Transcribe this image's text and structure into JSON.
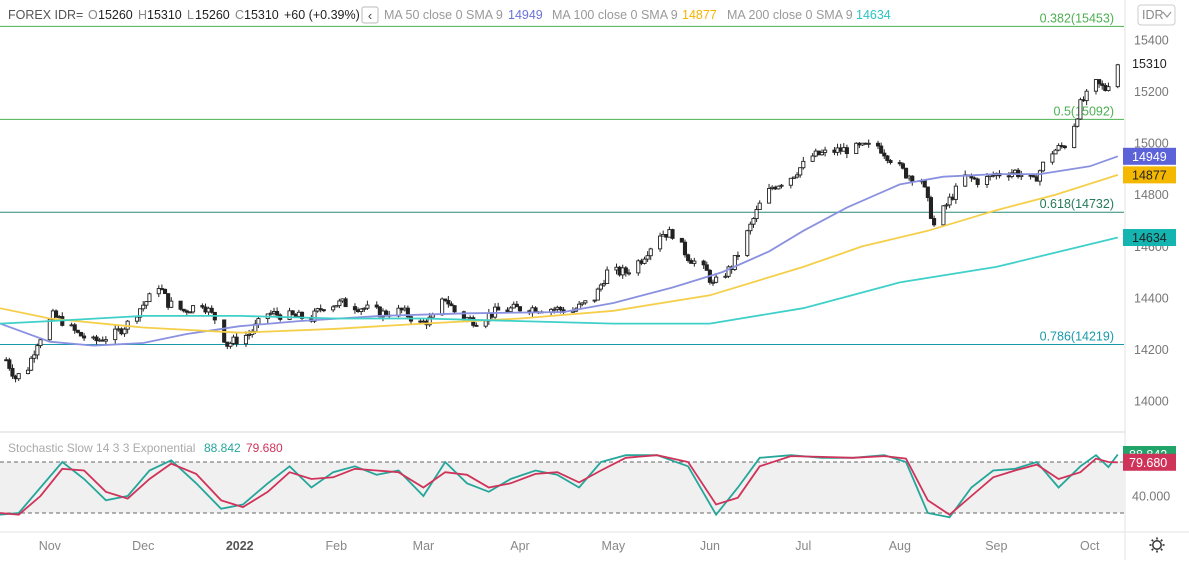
{
  "header": {
    "symbol": "FOREX IDR=",
    "o_label": "O",
    "open": "15260",
    "h_label": "H",
    "high": "15310",
    "l_label": "L",
    "low": "15260",
    "c_label": "C",
    "close": "15310",
    "change": "+60 (+0.39%)",
    "collapse_glyph": "‹",
    "ma": [
      {
        "label": "MA 50 close 0 SMA 9",
        "value": "14949",
        "color": "#6b73d6"
      },
      {
        "label": "MA 100 close 0 SMA 9",
        "value": "14877",
        "color": "#f5b400"
      },
      {
        "label": "MA 200 close 0 SMA 9",
        "value": "14634",
        "color": "#2cc4c4"
      }
    ],
    "currency_button": "IDR",
    "currency_icon": "chevron-down-icon"
  },
  "stoch": {
    "label": "Stochastic Slow 14 3 3 Exponential",
    "k_value": "88.842",
    "d_value": "79.680",
    "k_color": "#26a69a",
    "d_color": "#d0335a",
    "axis_label": "40.000"
  },
  "last_price_label": "15310",
  "settings_icon": "gear-icon",
  "colors": {
    "ma50": "#8a91e0",
    "ma100": "#f5cf4a",
    "ma200": "#3fd0c9",
    "fib_hi": "#4caf50",
    "fib_lo": "#1a9aa8"
  },
  "chart_data": [
    {
      "type": "candlestick",
      "title": "FOREX IDR=",
      "ylim": [
        13900,
        15480
      ],
      "y_ticks": [
        14000,
        14200,
        14400,
        14600,
        14800,
        15000,
        15200,
        15400
      ],
      "x_labels": [
        "Nov",
        "Dec",
        "2022",
        "Feb",
        "Mar",
        "Apr",
        "May",
        "Jun",
        "Jul",
        "Aug",
        "Sep",
        "Oct"
      ],
      "x_start": "2021-10-16",
      "x_end": "2022-10-12",
      "fib_levels": [
        {
          "ratio": "0.382",
          "price": 15453,
          "label": "0.382(15453)"
        },
        {
          "ratio": "0.5",
          "price": 15092,
          "label": "0.5(15092)"
        },
        {
          "ratio": "0.618",
          "price": 14732,
          "label": "0.618(14732)"
        },
        {
          "ratio": "0.786",
          "price": 14219,
          "label": "0.786(14219)"
        }
      ],
      "close_path": [
        [
          "2021-10-18",
          14160
        ],
        [
          "2021-10-21",
          14090
        ],
        [
          "2021-10-25",
          14130
        ],
        [
          "2021-10-28",
          14230
        ],
        [
          "2021-11-02",
          14330
        ],
        [
          "2021-11-05",
          14310
        ],
        [
          "2021-11-10",
          14260
        ],
        [
          "2021-11-15",
          14230
        ],
        [
          "2021-11-22",
          14260
        ],
        [
          "2021-11-26",
          14300
        ],
        [
          "2021-11-30",
          14360
        ],
        [
          "2021-12-03",
          14400
        ],
        [
          "2021-12-06",
          14450
        ],
        [
          "2021-12-09",
          14380
        ],
        [
          "2021-12-14",
          14350
        ],
        [
          "2021-12-20",
          14380
        ],
        [
          "2021-12-24",
          14320
        ],
        [
          "2021-12-28",
          14220
        ],
        [
          "2022-01-04",
          14260
        ],
        [
          "2022-01-10",
          14340
        ],
        [
          "2022-01-17",
          14330
        ],
        [
          "2022-01-24",
          14320
        ],
        [
          "2022-01-28",
          14370
        ],
        [
          "2022-02-03",
          14380
        ],
        [
          "2022-02-10",
          14360
        ],
        [
          "2022-02-16",
          14340
        ],
        [
          "2022-02-22",
          14350
        ],
        [
          "2022-02-28",
          14300
        ],
        [
          "2022-03-04",
          14320
        ],
        [
          "2022-03-08",
          14400
        ],
        [
          "2022-03-12",
          14330
        ],
        [
          "2022-03-18",
          14310
        ],
        [
          "2022-03-25",
          14350
        ],
        [
          "2022-04-01",
          14360
        ],
        [
          "2022-04-10",
          14360
        ],
        [
          "2022-04-18",
          14350
        ],
        [
          "2022-04-25",
          14400
        ],
        [
          "2022-04-29",
          14500
        ],
        [
          "2022-05-05",
          14500
        ],
        [
          "2022-05-10",
          14550
        ],
        [
          "2022-05-16",
          14650
        ],
        [
          "2022-05-20",
          14650
        ],
        [
          "2022-05-25",
          14560
        ],
        [
          "2022-05-31",
          14500
        ],
        [
          "2022-06-02",
          14450
        ],
        [
          "2022-06-08",
          14520
        ],
        [
          "2022-06-13",
          14650
        ],
        [
          "2022-06-17",
          14760
        ],
        [
          "2022-06-21",
          14830
        ],
        [
          "2022-06-27",
          14870
        ],
        [
          "2022-07-04",
          14950
        ],
        [
          "2022-07-11",
          14970
        ],
        [
          "2022-07-18",
          14980
        ],
        [
          "2022-07-25",
          14990
        ],
        [
          "2022-07-29",
          14940
        ],
        [
          "2022-08-03",
          14880
        ],
        [
          "2022-08-08",
          14860
        ],
        [
          "2022-08-12",
          14680
        ],
        [
          "2022-08-17",
          14780
        ],
        [
          "2022-08-22",
          14870
        ],
        [
          "2022-08-27",
          14850
        ],
        [
          "2022-09-01",
          14880
        ],
        [
          "2022-09-07",
          14890
        ],
        [
          "2022-09-13",
          14850
        ],
        [
          "2022-09-18",
          14960
        ],
        [
          "2022-09-24",
          15000
        ],
        [
          "2022-09-28",
          15150
        ],
        [
          "2022-10-03",
          15230
        ],
        [
          "2022-10-06",
          15210
        ],
        [
          "2022-10-10",
          15310
        ]
      ],
      "series": [
        {
          "name": "MA 50 close 0 SMA 9",
          "last": 14949,
          "points": [
            [
              "2021-10-16",
              14300
            ],
            [
              "2021-11-01",
              14230
            ],
            [
              "2021-11-15",
              14215
            ],
            [
              "2021-12-01",
              14225
            ],
            [
              "2021-12-15",
              14260
            ],
            [
              "2022-01-01",
              14290
            ],
            [
              "2022-01-20",
              14310
            ],
            [
              "2022-02-15",
              14330
            ],
            [
              "2022-03-15",
              14340
            ],
            [
              "2022-04-15",
              14345
            ],
            [
              "2022-05-01",
              14380
            ],
            [
              "2022-05-20",
              14440
            ],
            [
              "2022-06-05",
              14500
            ],
            [
              "2022-06-20",
              14580
            ],
            [
              "2022-07-01",
              14660
            ],
            [
              "2022-07-15",
              14750
            ],
            [
              "2022-08-01",
              14840
            ],
            [
              "2022-08-15",
              14870
            ],
            [
              "2022-09-01",
              14880
            ],
            [
              "2022-09-15",
              14880
            ],
            [
              "2022-10-01",
              14910
            ],
            [
              "2022-10-10",
              14949
            ]
          ]
        },
        {
          "name": "MA 100 close 0 SMA 9",
          "last": 14877,
          "points": [
            [
              "2021-10-16",
              14360
            ],
            [
              "2021-11-01",
              14320
            ],
            [
              "2021-12-01",
              14285
            ],
            [
              "2022-01-01",
              14265
            ],
            [
              "2022-02-01",
              14280
            ],
            [
              "2022-03-01",
              14300
            ],
            [
              "2022-04-01",
              14320
            ],
            [
              "2022-05-01",
              14350
            ],
            [
              "2022-06-01",
              14410
            ],
            [
              "2022-07-01",
              14520
            ],
            [
              "2022-07-20",
              14600
            ],
            [
              "2022-08-10",
              14660
            ],
            [
              "2022-09-01",
              14740
            ],
            [
              "2022-09-20",
              14800
            ],
            [
              "2022-10-10",
              14877
            ]
          ]
        },
        {
          "name": "MA 200 close 0 SMA 9",
          "last": 14634,
          "points": [
            [
              "2021-10-16",
              14300
            ],
            [
              "2021-11-01",
              14310
            ],
            [
              "2021-12-01",
              14330
            ],
            [
              "2022-01-01",
              14330
            ],
            [
              "2022-02-01",
              14320
            ],
            [
              "2022-03-01",
              14320
            ],
            [
              "2022-04-01",
              14310
            ],
            [
              "2022-05-01",
              14300
            ],
            [
              "2022-06-01",
              14300
            ],
            [
              "2022-07-01",
              14360
            ],
            [
              "2022-08-01",
              14460
            ],
            [
              "2022-09-01",
              14520
            ],
            [
              "2022-10-10",
              14634
            ]
          ]
        }
      ]
    },
    {
      "type": "line",
      "title": "Stochastic Slow 14 3 3 Exponential",
      "ylim": [
        0,
        100
      ],
      "levels": [
        80,
        20
      ],
      "x_start": "2021-10-16",
      "x_end": "2022-10-12",
      "series": [
        {
          "name": "%K",
          "last": 88.842,
          "points": [
            [
              "2021-10-16",
              18
            ],
            [
              "2021-10-22",
              20
            ],
            [
              "2021-10-29",
              50
            ],
            [
              "2021-11-05",
              80
            ],
            [
              "2021-11-12",
              60
            ],
            [
              "2021-11-19",
              35
            ],
            [
              "2021-11-26",
              40
            ],
            [
              "2021-12-03",
              70
            ],
            [
              "2021-12-10",
              82
            ],
            [
              "2021-12-18",
              55
            ],
            [
              "2021-12-26",
              25
            ],
            [
              "2022-01-02",
              30
            ],
            [
              "2022-01-10",
              55
            ],
            [
              "2022-01-17",
              75
            ],
            [
              "2022-01-24",
              50
            ],
            [
              "2022-01-31",
              68
            ],
            [
              "2022-02-07",
              75
            ],
            [
              "2022-02-14",
              65
            ],
            [
              "2022-02-21",
              70
            ],
            [
              "2022-03-01",
              40
            ],
            [
              "2022-03-08",
              80
            ],
            [
              "2022-03-15",
              55
            ],
            [
              "2022-03-22",
              45
            ],
            [
              "2022-03-29",
              60
            ],
            [
              "2022-04-06",
              70
            ],
            [
              "2022-04-13",
              65
            ],
            [
              "2022-04-20",
              50
            ],
            [
              "2022-04-27",
              80
            ],
            [
              "2022-05-05",
              88
            ],
            [
              "2022-05-15",
              88
            ],
            [
              "2022-05-25",
              75
            ],
            [
              "2022-06-03",
              18
            ],
            [
              "2022-06-10",
              50
            ],
            [
              "2022-06-17",
              85
            ],
            [
              "2022-06-27",
              88
            ],
            [
              "2022-07-07",
              85
            ],
            [
              "2022-07-17",
              85
            ],
            [
              "2022-07-27",
              88
            ],
            [
              "2022-08-03",
              80
            ],
            [
              "2022-08-10",
              20
            ],
            [
              "2022-08-17",
              15
            ],
            [
              "2022-08-24",
              50
            ],
            [
              "2022-08-31",
              70
            ],
            [
              "2022-09-07",
              72
            ],
            [
              "2022-09-14",
              80
            ],
            [
              "2022-09-21",
              50
            ],
            [
              "2022-09-28",
              75
            ],
            [
              "2022-10-03",
              88
            ],
            [
              "2022-10-07",
              74
            ],
            [
              "2022-10-10",
              88.842
            ]
          ]
        },
        {
          "name": "%D",
          "last": 79.68,
          "points": [
            [
              "2021-10-16",
              20
            ],
            [
              "2021-10-22",
              18
            ],
            [
              "2021-10-29",
              40
            ],
            [
              "2021-11-05",
              72
            ],
            [
              "2021-11-12",
              70
            ],
            [
              "2021-11-19",
              45
            ],
            [
              "2021-11-26",
              37
            ],
            [
              "2021-12-03",
              60
            ],
            [
              "2021-12-10",
              78
            ],
            [
              "2021-12-18",
              66
            ],
            [
              "2021-12-26",
              35
            ],
            [
              "2022-01-02",
              27
            ],
            [
              "2022-01-10",
              45
            ],
            [
              "2022-01-17",
              68
            ],
            [
              "2022-01-24",
              60
            ],
            [
              "2022-01-31",
              62
            ],
            [
              "2022-02-07",
              72
            ],
            [
              "2022-02-14",
              70
            ],
            [
              "2022-02-21",
              68
            ],
            [
              "2022-03-01",
              50
            ],
            [
              "2022-03-08",
              68
            ],
            [
              "2022-03-15",
              65
            ],
            [
              "2022-03-22",
              50
            ],
            [
              "2022-03-29",
              55
            ],
            [
              "2022-04-06",
              66
            ],
            [
              "2022-04-13",
              68
            ],
            [
              "2022-04-20",
              56
            ],
            [
              "2022-04-27",
              70
            ],
            [
              "2022-05-05",
              85
            ],
            [
              "2022-05-15",
              88
            ],
            [
              "2022-05-25",
              80
            ],
            [
              "2022-06-03",
              30
            ],
            [
              "2022-06-10",
              38
            ],
            [
              "2022-06-17",
              75
            ],
            [
              "2022-06-27",
              87
            ],
            [
              "2022-07-07",
              86
            ],
            [
              "2022-07-17",
              85
            ],
            [
              "2022-07-27",
              87
            ],
            [
              "2022-08-03",
              84
            ],
            [
              "2022-08-10",
              35
            ],
            [
              "2022-08-17",
              18
            ],
            [
              "2022-08-24",
              40
            ],
            [
              "2022-08-31",
              62
            ],
            [
              "2022-09-07",
              70
            ],
            [
              "2022-09-14",
              77
            ],
            [
              "2022-09-21",
              60
            ],
            [
              "2022-09-28",
              68
            ],
            [
              "2022-10-03",
              84
            ],
            [
              "2022-10-07",
              80
            ],
            [
              "2022-10-10",
              79.68
            ]
          ]
        }
      ]
    }
  ]
}
